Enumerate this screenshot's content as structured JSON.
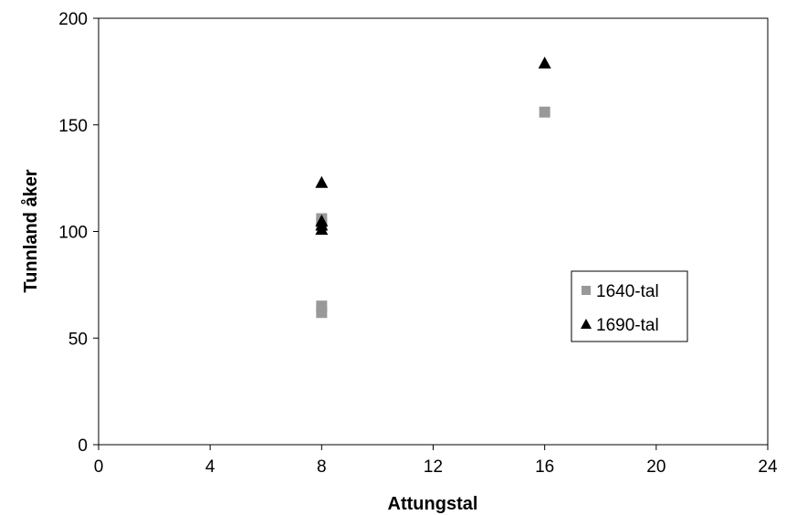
{
  "chart_data": {
    "type": "scatter",
    "title": "",
    "xlabel": "Attungstal",
    "ylabel": "Tunnland åker",
    "xlim": [
      0,
      24
    ],
    "ylim": [
      0,
      200
    ],
    "xticks": [
      0,
      4,
      8,
      12,
      16,
      20,
      24
    ],
    "yticks": [
      0,
      50,
      100,
      150,
      200
    ],
    "grid": false,
    "legend_position": "right",
    "series": [
      {
        "name": "1640-tal",
        "marker": "square",
        "color": "#999999",
        "points": [
          {
            "x": 8,
            "y": 106
          },
          {
            "x": 8,
            "y": 104
          },
          {
            "x": 8,
            "y": 65
          },
          {
            "x": 8,
            "y": 62
          },
          {
            "x": 16,
            "y": 156
          }
        ]
      },
      {
        "name": "1690-tal",
        "marker": "triangle",
        "color": "#000000",
        "points": [
          {
            "x": 8,
            "y": 123
          },
          {
            "x": 8,
            "y": 105
          },
          {
            "x": 8,
            "y": 103
          },
          {
            "x": 8,
            "y": 101
          },
          {
            "x": 16,
            "y": 179
          }
        ]
      }
    ]
  }
}
